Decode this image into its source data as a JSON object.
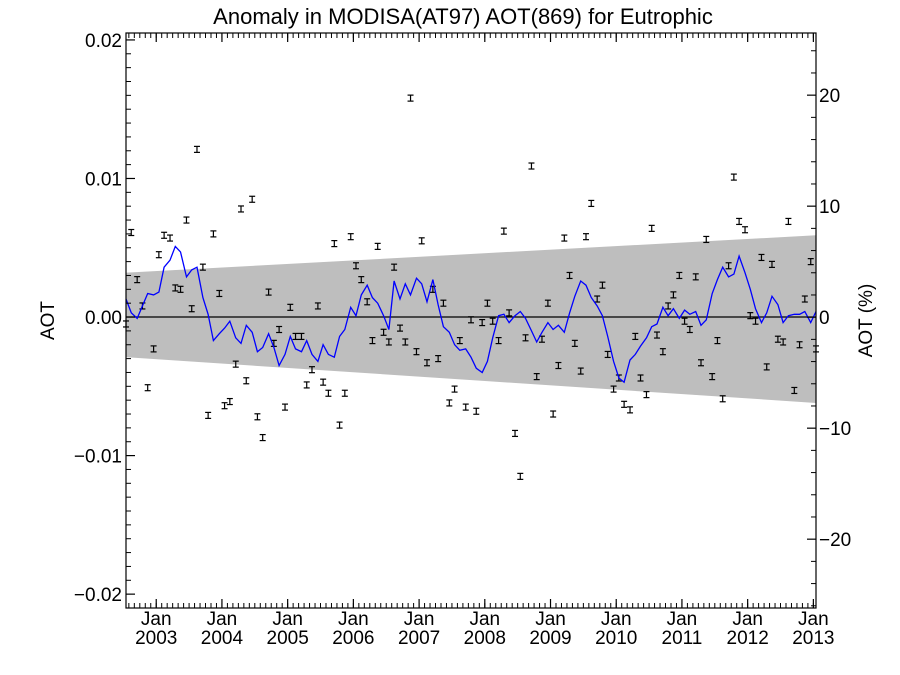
{
  "chart_data": {
    "type": "scatter",
    "title": "Anomaly in MODISA(AT97) AOT(869) for Eutrophic",
    "ylabel": "AOT",
    "y2label": "AOT (%)",
    "xlabel": "",
    "ylim": [
      -0.021,
      0.0205
    ],
    "y2lim": [
      -26.2,
      25.6
    ],
    "xlim": [
      2002.54,
      2013.04
    ],
    "yticks": [
      {
        "value": 0.02,
        "label": "0.02"
      },
      {
        "value": 0.01,
        "label": "0.01"
      },
      {
        "value": 0.0,
        "label": "0.00"
      },
      {
        "value": -0.01,
        "label": "-0.01"
      },
      {
        "value": -0.02,
        "label": "-0.02"
      }
    ],
    "y2ticks": [
      {
        "value": 20,
        "label": "20"
      },
      {
        "value": 10,
        "label": "10"
      },
      {
        "value": 0,
        "label": "0"
      },
      {
        "value": -10,
        "label": "-10"
      },
      {
        "value": -20,
        "label": "-20"
      }
    ],
    "xticks": [
      {
        "value": 2003.0,
        "month": "Jan",
        "year": "2003"
      },
      {
        "value": 2004.0,
        "month": "Jan",
        "year": "2004"
      },
      {
        "value": 2005.0,
        "month": "Jan",
        "year": "2005"
      },
      {
        "value": 2006.0,
        "month": "Jan",
        "year": "2006"
      },
      {
        "value": 2007.0,
        "month": "Jan",
        "year": "2007"
      },
      {
        "value": 2008.0,
        "month": "Jan",
        "year": "2008"
      },
      {
        "value": 2009.0,
        "month": "Jan",
        "year": "2009"
      },
      {
        "value": 2010.0,
        "month": "Jan",
        "year": "2010"
      },
      {
        "value": 2011.0,
        "month": "Jan",
        "year": "2011"
      },
      {
        "value": 2012.0,
        "month": "Jan",
        "year": "2012"
      },
      {
        "value": 2013.0,
        "month": "Jan",
        "year": "2013"
      }
    ],
    "band": {
      "x": [
        2002.54,
        2013.04
      ],
      "upper": [
        0.0032,
        0.0059
      ],
      "lower": [
        -0.0029,
        -0.0062
      ],
      "color": "#bebebe"
    },
    "zero_line": true,
    "grid": false,
    "legend": "none",
    "colors": {
      "line": "#0000ff",
      "points": "#000000",
      "band": "#bebebe"
    },
    "series": [
      {
        "type": "errorbar-points",
        "x": [
          2002.54,
          2002.62,
          2002.71,
          2002.79,
          2002.87,
          2002.96,
          2003.04,
          2003.12,
          2003.21,
          2003.29,
          2003.37,
          2003.46,
          2003.54,
          2003.62,
          2003.71,
          2003.79,
          2003.87,
          2003.96,
          2004.04,
          2004.12,
          2004.21,
          2004.29,
          2004.37,
          2004.46,
          2004.54,
          2004.62,
          2004.71,
          2004.79,
          2004.87,
          2004.96,
          2005.04,
          2005.12,
          2005.21,
          2005.29,
          2005.37,
          2005.46,
          2005.54,
          2005.62,
          2005.71,
          2005.79,
          2005.87,
          2005.96,
          2006.04,
          2006.12,
          2006.21,
          2006.29,
          2006.37,
          2006.46,
          2006.54,
          2006.62,
          2006.71,
          2006.79,
          2006.87,
          2006.96,
          2007.04,
          2007.12,
          2007.21,
          2007.29,
          2007.37,
          2007.46,
          2007.54,
          2007.62,
          2007.71,
          2007.79,
          2007.87,
          2007.96,
          2008.04,
          2008.12,
          2008.21,
          2008.29,
          2008.37,
          2008.46,
          2008.54,
          2008.62,
          2008.71,
          2008.79,
          2008.87,
          2008.96,
          2009.04,
          2009.12,
          2009.21,
          2009.29,
          2009.37,
          2009.46,
          2009.54,
          2009.62,
          2009.71,
          2009.79,
          2009.87,
          2009.96,
          2010.04,
          2010.12,
          2010.21,
          2010.29,
          2010.37,
          2010.46,
          2010.54,
          2010.62,
          2010.71,
          2010.79,
          2010.87,
          2010.96,
          2011.04,
          2011.12,
          2011.21,
          2011.29,
          2011.37,
          2011.46,
          2011.54,
          2011.62,
          2011.71,
          2011.79,
          2011.87,
          2011.96,
          2012.04,
          2012.12,
          2012.21,
          2012.29,
          2012.37,
          2012.46,
          2012.54,
          2012.62,
          2012.71,
          2012.79,
          2012.87,
          2012.96,
          2013.04
        ],
        "y": [
          -0.0005,
          0.0061,
          0.0027,
          0.0008,
          -0.0051,
          -0.0023,
          0.0045,
          0.0059,
          0.0057,
          0.0021,
          0.002,
          0.007,
          0.0006,
          0.0121,
          0.0036,
          -0.0071,
          0.006,
          0.0017,
          -0.0064,
          -0.0061,
          -0.0034,
          0.0078,
          -0.0046,
          0.0085,
          -0.0072,
          -0.0087,
          0.0018,
          -0.0019,
          -0.0009,
          -0.0065,
          0.0007,
          -0.0014,
          -0.0014,
          -0.0049,
          -0.0038,
          0.0008,
          -0.0047,
          -0.0055,
          0.0053,
          -0.0078,
          -0.0055,
          0.0058,
          0.0037,
          0.0027,
          0.0011,
          -0.0017,
          0.0051,
          -0.0011,
          -0.0018,
          0.0036,
          -0.0008,
          -0.0018,
          0.0158,
          -0.0025,
          0.0055,
          -0.0033,
          0.002,
          -0.003,
          0.001,
          -0.0062,
          -0.0052,
          -0.0017,
          -0.0065,
          -0.0002,
          -0.0068,
          -0.0004,
          0.001,
          -0.0003,
          -0.0017,
          0.0062,
          0.0003,
          -0.0084,
          -0.0115,
          -0.0015,
          0.0109,
          -0.0043,
          -0.0016,
          0.001,
          -0.007,
          -0.0035,
          0.0057,
          0.003,
          -0.0019,
          -0.0039,
          0.0058,
          0.0082,
          0.0013,
          0.0023,
          -0.0027,
          -0.0052,
          -0.0044,
          -0.0063,
          -0.0067,
          -0.0014,
          -0.0044,
          -0.0056,
          0.0064,
          -0.0013,
          -0.0025,
          0.0008,
          0.0016,
          0.003,
          -0.0003,
          -0.0009,
          0.0029,
          -0.0033,
          0.0056,
          -0.0043,
          -0.0017,
          -0.0059,
          0.0037,
          0.0101,
          0.0069,
          0.0063,
          0.0001,
          -0.0003,
          0.0043,
          -0.0036,
          0.0038,
          -0.0016,
          -0.0018,
          0.0069,
          -0.0053,
          -0.002,
          0.0013,
          0.004,
          -0.0023
        ]
      },
      {
        "type": "line",
        "x": [
          2002.54,
          2002.62,
          2002.71,
          2002.79,
          2002.87,
          2002.96,
          2003.04,
          2003.12,
          2003.21,
          2003.29,
          2003.37,
          2003.46,
          2003.54,
          2003.62,
          2003.71,
          2003.79,
          2003.87,
          2003.96,
          2004.04,
          2004.12,
          2004.21,
          2004.29,
          2004.37,
          2004.46,
          2004.54,
          2004.62,
          2004.71,
          2004.79,
          2004.87,
          2004.96,
          2005.04,
          2005.12,
          2005.21,
          2005.29,
          2005.37,
          2005.46,
          2005.54,
          2005.62,
          2005.71,
          2005.79,
          2005.87,
          2005.96,
          2006.04,
          2006.12,
          2006.21,
          2006.29,
          2006.37,
          2006.46,
          2006.54,
          2006.62,
          2006.71,
          2006.79,
          2006.87,
          2006.96,
          2007.04,
          2007.12,
          2007.21,
          2007.29,
          2007.37,
          2007.46,
          2007.54,
          2007.62,
          2007.71,
          2007.79,
          2007.87,
          2007.96,
          2008.04,
          2008.12,
          2008.21,
          2008.29,
          2008.37,
          2008.46,
          2008.54,
          2008.62,
          2008.71,
          2008.79,
          2008.87,
          2008.96,
          2009.04,
          2009.12,
          2009.21,
          2009.29,
          2009.37,
          2009.46,
          2009.54,
          2009.62,
          2009.71,
          2009.79,
          2009.87,
          2009.96,
          2010.04,
          2010.12,
          2010.21,
          2010.29,
          2010.37,
          2010.46,
          2010.54,
          2010.62,
          2010.71,
          2010.79,
          2010.87,
          2010.96,
          2011.04,
          2011.12,
          2011.21,
          2011.29,
          2011.37,
          2011.46,
          2011.54,
          2011.62,
          2011.71,
          2011.79,
          2011.87,
          2011.96,
          2012.04,
          2012.12,
          2012.21,
          2012.29,
          2012.37,
          2012.46,
          2012.54,
          2012.62,
          2012.71,
          2012.79,
          2012.87,
          2012.96,
          2013.04
        ],
        "y": [
          0.0013,
          0.0003,
          -0.0001,
          0.0008,
          0.0017,
          0.0016,
          0.0018,
          0.0036,
          0.0041,
          0.0051,
          0.0047,
          0.0029,
          0.0034,
          0.0036,
          0.0014,
          0.0002,
          -0.0017,
          -0.0012,
          -0.0008,
          -0.0003,
          -0.0015,
          -0.0019,
          -0.0006,
          -0.0011,
          -0.0025,
          -0.0022,
          -0.0012,
          -0.0022,
          -0.0035,
          -0.0027,
          -0.0014,
          -0.0023,
          -0.0025,
          -0.0017,
          -0.0027,
          -0.0032,
          -0.002,
          -0.0027,
          -0.0029,
          -0.0014,
          -0.0009,
          0.0007,
          0.0001,
          0.0016,
          0.0023,
          0.0014,
          0.001,
          0.0001,
          -0.0009,
          0.0026,
          0.0013,
          0.0024,
          0.0016,
          0.0028,
          0.0024,
          0.0011,
          0.0027,
          0.0009,
          -0.0007,
          -0.0011,
          -0.002,
          -0.0024,
          -0.0023,
          -0.0029,
          -0.0037,
          -0.004,
          -0.0032,
          -0.0015,
          0.0001,
          0.0002,
          -0.0004,
          0.0001,
          0.0004,
          -0.0001,
          -0.001,
          -0.0018,
          -0.0011,
          -0.0004,
          -0.0009,
          -0.0006,
          -0.0011,
          0.0003,
          0.0015,
          0.0026,
          0.0023,
          0.0014,
          0.0008,
          0.0001,
          -0.0014,
          -0.0032,
          -0.0044,
          -0.0047,
          -0.0031,
          -0.0027,
          -0.0021,
          -0.0015,
          -0.0007,
          -0.0005,
          0.0007,
          0.0001,
          0.0006,
          -0.0001,
          0.0005,
          0.0002,
          0.0004,
          -0.0006,
          -0.0002,
          0.0017,
          0.0027,
          0.0036,
          0.0029,
          0.0031,
          0.0044,
          0.0032,
          0.002,
          0.0006,
          -0.0004,
          0.0003,
          0.0015,
          0.0009,
          -0.0004,
          0.0001,
          0.0002,
          0.0002,
          0.0004,
          -0.0004,
          0.0004
        ]
      }
    ]
  }
}
